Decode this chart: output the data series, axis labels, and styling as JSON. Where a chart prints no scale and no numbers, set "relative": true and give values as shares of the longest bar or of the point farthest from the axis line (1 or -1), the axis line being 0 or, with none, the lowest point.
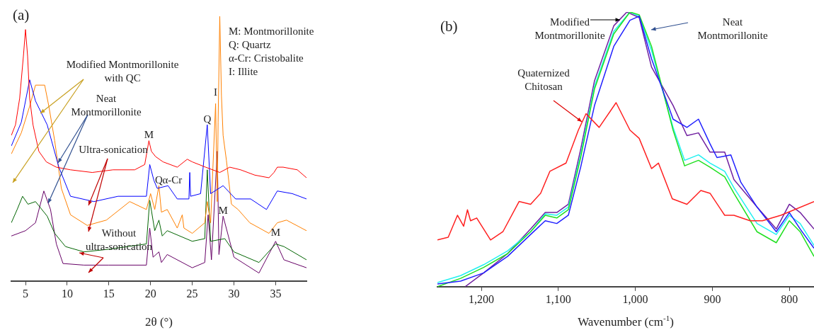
{
  "chart_data": [
    {
      "type": "line",
      "title": "(a)",
      "xlabel": "2θ (°)",
      "relative": true,
      "xlim": [
        3.3,
        38.7
      ],
      "xticks": [
        5,
        10,
        15,
        20,
        25,
        30,
        35
      ],
      "annotations": [
        "Modified Montmorillonite\nwith QC",
        "Neat\nMontmorillonite",
        "Ultra-sonication",
        "Without\nultra-sonication",
        "M: Montmorillonite\nQ: Quartz\nα-Cr: Cristobalite\nI: Illite",
        {
          "text": "M",
          "x": 19.8,
          "y": 0.53
        },
        {
          "text": "Q",
          "x": 21.0,
          "y": 0.36
        },
        {
          "text": "α-Cr",
          "x": 22.6,
          "y": 0.36
        },
        {
          "text": "Q",
          "x": 26.8,
          "y": 0.59
        },
        {
          "text": "I",
          "x": 27.8,
          "y": 0.69
        },
        {
          "text": "M",
          "x": 28.7,
          "y": 0.245
        },
        {
          "text": "M",
          "x": 35.0,
          "y": 0.16
        }
      ],
      "series": [
        {
          "color": "#ff0000",
          "x": [
            3.3,
            3.8,
            4.3,
            4.75,
            5.0,
            5.25,
            5.5,
            5.9,
            6.6,
            7.5,
            8.7,
            10.4,
            13.0,
            15.5,
            18.1,
            19.3,
            19.8,
            20.1,
            20.6,
            21.5,
            23.2,
            24.4,
            25.0,
            26.6,
            28.3,
            29.5,
            30.8,
            32.5,
            34.2,
            34.8,
            35.2,
            35.9,
            37.6,
            38.7
          ],
          "values": [
            0.55,
            0.59,
            0.69,
            0.85,
            0.95,
            0.85,
            0.69,
            0.59,
            0.49,
            0.45,
            0.43,
            0.42,
            0.41,
            0.42,
            0.42,
            0.44,
            0.53,
            0.49,
            0.47,
            0.45,
            0.43,
            0.46,
            0.45,
            0.43,
            0.41,
            0.43,
            0.42,
            0.4,
            0.39,
            0.41,
            0.43,
            0.43,
            0.42,
            0.39
          ]
        },
        {
          "color": "#0000ff",
          "x": [
            3.3,
            4.5,
            5.5,
            6.2,
            7.6,
            9.0,
            10.4,
            13.2,
            16.1,
            19.5,
            19.9,
            20.4,
            20.8,
            22.1,
            23.2,
            24.6,
            24.7,
            24.8,
            26.0,
            26.8,
            27.2,
            28.7,
            30.2,
            32.0,
            33.9,
            35.2,
            37.0,
            38.7
          ],
          "values": [
            0.51,
            0.6,
            0.76,
            0.68,
            0.59,
            0.43,
            0.32,
            0.3,
            0.32,
            0.32,
            0.44,
            0.38,
            0.35,
            0.36,
            0.31,
            0.31,
            0.41,
            0.32,
            0.33,
            0.59,
            0.33,
            0.36,
            0.31,
            0.31,
            0.27,
            0.34,
            0.33,
            0.31
          ]
        },
        {
          "color": "#ff8000",
          "x": [
            3.3,
            4.5,
            5.5,
            6.2,
            7.3,
            7.8,
            8.5,
            9.3,
            10.4,
            12.4,
            14.7,
            17.5,
            19.5,
            20.0,
            20.5,
            21.0,
            21.3,
            22.0,
            23.2,
            23.8,
            24.0,
            25.0,
            26.5,
            26.8,
            27.2,
            27.8,
            28.0,
            28.1,
            28.3,
            28.5,
            28.7,
            29.1,
            29.7,
            30.5,
            31.9,
            34.2,
            35.2,
            36.3,
            38.7
          ],
          "values": [
            0.48,
            0.56,
            0.66,
            0.74,
            0.74,
            0.66,
            0.53,
            0.35,
            0.25,
            0.21,
            0.23,
            0.3,
            0.27,
            0.33,
            0.27,
            0.36,
            0.26,
            0.27,
            0.2,
            0.25,
            0.2,
            0.18,
            0.22,
            0.3,
            0.22,
            0.67,
            0.3,
            0.6,
            1.0,
            0.7,
            0.55,
            0.455,
            0.29,
            0.27,
            0.22,
            0.18,
            0.22,
            0.23,
            0.19
          ]
        },
        {
          "color": "#006400",
          "x": [
            3.3,
            4.0,
            4.65,
            5.3,
            6.2,
            7.6,
            8.5,
            9.8,
            12.0,
            15.0,
            19.5,
            19.9,
            20.5,
            21.0,
            21.4,
            22.0,
            25.0,
            26.5,
            26.8,
            27.2,
            28.9,
            30.0,
            33.0,
            35.0,
            36.0,
            38.7
          ],
          "values": [
            0.22,
            0.27,
            0.32,
            0.29,
            0.3,
            0.245,
            0.18,
            0.13,
            0.11,
            0.12,
            0.14,
            0.305,
            0.19,
            0.23,
            0.17,
            0.19,
            0.15,
            0.16,
            0.42,
            0.15,
            0.16,
            0.11,
            0.07,
            0.14,
            0.13,
            0.08
          ]
        },
        {
          "color": "#660066",
          "x": [
            3.3,
            5.0,
            6.2,
            7.2,
            8.0,
            8.7,
            9.5,
            12.0,
            15.0,
            19.5,
            19.9,
            20.3,
            21.0,
            21.3,
            22.0,
            25.0,
            26.5,
            26.9,
            27.3,
            28.0,
            28.2,
            28.7,
            30.0,
            33.0,
            35.0,
            36.0,
            38.7
          ],
          "values": [
            0.17,
            0.19,
            0.22,
            0.34,
            0.27,
            0.14,
            0.066,
            0.06,
            0.06,
            0.06,
            0.2,
            0.09,
            0.11,
            0.07,
            0.1,
            0.05,
            0.07,
            0.25,
            0.08,
            0.49,
            0.1,
            0.245,
            0.09,
            0.03,
            0.15,
            0.08,
            0.05
          ]
        }
      ]
    },
    {
      "type": "line",
      "title": "(b)",
      "xlabel": "Wavenumber (cm$^{-1}$)",
      "relative": true,
      "xlim": [
        1257,
        768
      ],
      "xticks": [
        {
          "value": 1200,
          "label": "1,200"
        },
        {
          "value": 1100,
          "label": "1,100"
        },
        {
          "value": 1000,
          "label": "1,000"
        },
        {
          "value": 900,
          "label": "900"
        },
        {
          "value": 800,
          "label": "800"
        }
      ],
      "annotations": [
        "Modified\nMontmorillonite",
        "Neat\nMontmorillonite",
        "Quaternized\nChitosan"
      ],
      "series": [
        {
          "color": "#ff2020",
          "x": [
            1257,
            1243,
            1231,
            1223,
            1218,
            1214,
            1206,
            1188,
            1172,
            1151,
            1136,
            1123,
            1111,
            1090,
            1074,
            1064,
            1047,
            1025,
            1007,
            995,
            979,
            970,
            952,
            933,
            915,
            903,
            884,
            872,
            851,
            835,
            811,
            768
          ],
          "values": [
            0.17,
            0.18,
            0.26,
            0.22,
            0.28,
            0.24,
            0.25,
            0.17,
            0.2,
            0.31,
            0.3,
            0.34,
            0.42,
            0.45,
            0.57,
            0.63,
            0.58,
            0.67,
            0.57,
            0.54,
            0.43,
            0.45,
            0.32,
            0.3,
            0.35,
            0.34,
            0.26,
            0.26,
            0.24,
            0.24,
            0.26,
            0.31
          ]
        },
        {
          "color": "#2020ff",
          "x": [
            1257,
            1227,
            1197,
            1166,
            1136,
            1117,
            1102,
            1087,
            1071,
            1053,
            1028,
            1007,
            995,
            979,
            951,
            933,
            918,
            903,
            894,
            876,
            863,
            842,
            817,
            800,
            786,
            768
          ],
          "values": [
            0.01,
            0.02,
            0.05,
            0.11,
            0.19,
            0.24,
            0.23,
            0.26,
            0.435,
            0.66,
            0.875,
            0.97,
            0.985,
            0.83,
            0.61,
            0.58,
            0.61,
            0.52,
            0.47,
            0.48,
            0.38,
            0.29,
            0.2,
            0.27,
            0.21,
            0.14
          ]
        },
        {
          "color": "#20e020",
          "x": [
            1257,
            1227,
            1197,
            1166,
            1136,
            1117,
            1102,
            1087,
            1071,
            1053,
            1028,
            1007,
            995,
            979,
            951,
            936,
            918,
            903,
            884,
            872,
            842,
            817,
            800,
            786,
            768
          ],
          "values": [
            0.0,
            0.03,
            0.07,
            0.12,
            0.2,
            0.26,
            0.25,
            0.28,
            0.47,
            0.72,
            0.92,
            1.0,
            0.99,
            0.875,
            0.57,
            0.44,
            0.46,
            0.435,
            0.4,
            0.34,
            0.2,
            0.16,
            0.24,
            0.2,
            0.11
          ]
        },
        {
          "color": "#20f0f0",
          "x": [
            1257,
            1227,
            1197,
            1166,
            1136,
            1117,
            1102,
            1087,
            1071,
            1053,
            1028,
            1007,
            995,
            979,
            951,
            936,
            918,
            903,
            884,
            872,
            842,
            817,
            800,
            786,
            768
          ],
          "values": [
            0.015,
            0.04,
            0.08,
            0.13,
            0.2,
            0.265,
            0.26,
            0.29,
            0.48,
            0.73,
            0.93,
            1.0,
            0.985,
            0.86,
            0.58,
            0.46,
            0.48,
            0.45,
            0.42,
            0.36,
            0.23,
            0.19,
            0.26,
            0.23,
            0.15
          ]
        },
        {
          "color": "#7020a0",
          "x": [
            1221,
            1197,
            1166,
            1136,
            1117,
            1102,
            1087,
            1071,
            1053,
            1028,
            1011,
            995,
            979,
            951,
            933,
            918,
            903,
            884,
            872,
            842,
            817,
            800,
            786,
            768
          ],
          "values": [
            0,
            0.05,
            0.12,
            0.21,
            0.27,
            0.27,
            0.3,
            0.5,
            0.75,
            0.95,
            1.0,
            0.98,
            0.8,
            0.66,
            0.55,
            0.56,
            0.49,
            0.49,
            0.39,
            0.29,
            0.21,
            0.3,
            0.27,
            0.21
          ]
        }
      ]
    }
  ]
}
